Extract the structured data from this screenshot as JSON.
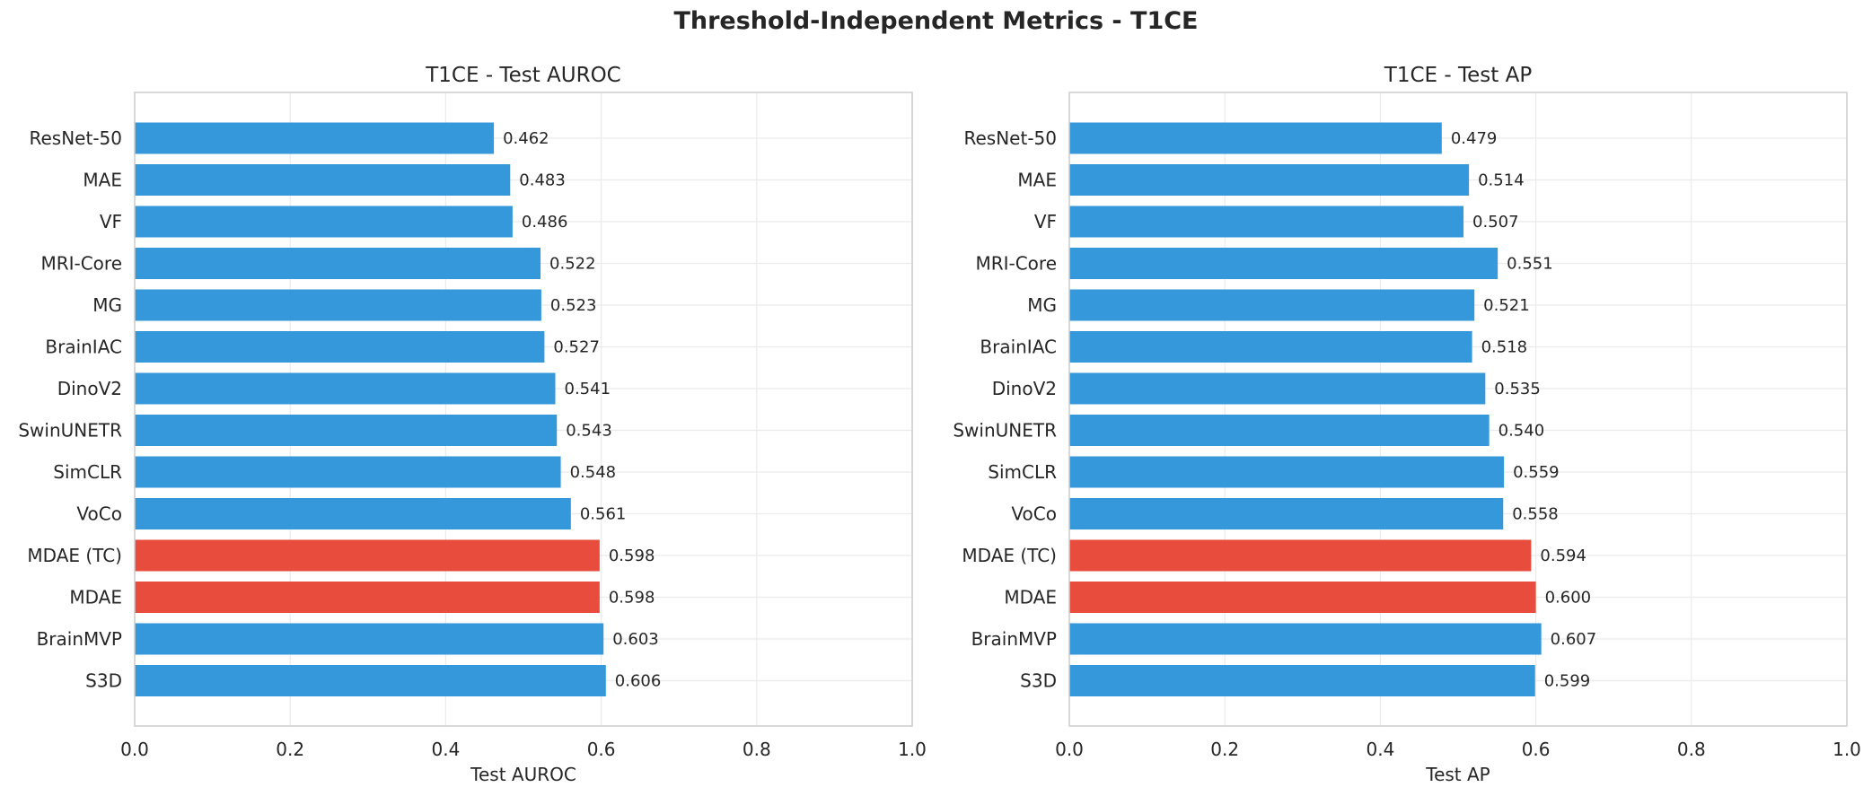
{
  "suptitle": "Threshold-Independent Metrics - T1CE",
  "colors": {
    "default": "#3498db",
    "highlight": "#e74c3c",
    "grid": "#ebebeb",
    "frame": "#cccccc"
  },
  "chart_data": [
    {
      "type": "bar",
      "orientation": "horizontal",
      "title": "T1CE - Test AUROC",
      "xlabel": "Test AUROC",
      "ylabel": "",
      "xlim": [
        0.0,
        1.0
      ],
      "xticks": [
        "0.0",
        "0.2",
        "0.4",
        "0.6",
        "0.8",
        "1.0"
      ],
      "grid": true,
      "categories": [
        "ResNet-50",
        "MAE",
        "VF",
        "MRI-Core",
        "MG",
        "BrainIAC",
        "DinoV2",
        "SwinUNETR",
        "SimCLR",
        "VoCo",
        "MDAE (TC)",
        "MDAE",
        "BrainMVP",
        "S3D"
      ],
      "values": [
        0.462,
        0.483,
        0.486,
        0.522,
        0.523,
        0.527,
        0.541,
        0.543,
        0.548,
        0.561,
        0.598,
        0.598,
        0.603,
        0.606
      ],
      "labels": [
        "0.462",
        "0.483",
        "0.486",
        "0.522",
        "0.523",
        "0.527",
        "0.541",
        "0.543",
        "0.548",
        "0.561",
        "0.598",
        "0.598",
        "0.603",
        "0.606"
      ],
      "highlight": [
        "MDAE (TC)",
        "MDAE"
      ]
    },
    {
      "type": "bar",
      "orientation": "horizontal",
      "title": "T1CE - Test AP",
      "xlabel": "Test AP",
      "ylabel": "",
      "xlim": [
        0.0,
        1.0
      ],
      "xticks": [
        "0.0",
        "0.2",
        "0.4",
        "0.6",
        "0.8",
        "1.0"
      ],
      "grid": true,
      "categories": [
        "ResNet-50",
        "MAE",
        "VF",
        "MRI-Core",
        "MG",
        "BrainIAC",
        "DinoV2",
        "SwinUNETR",
        "SimCLR",
        "VoCo",
        "MDAE (TC)",
        "MDAE",
        "BrainMVP",
        "S3D"
      ],
      "values": [
        0.479,
        0.514,
        0.507,
        0.551,
        0.521,
        0.518,
        0.535,
        0.54,
        0.559,
        0.558,
        0.594,
        0.6,
        0.607,
        0.599
      ],
      "labels": [
        "0.479",
        "0.514",
        "0.507",
        "0.551",
        "0.521",
        "0.518",
        "0.535",
        "0.540",
        "0.559",
        "0.558",
        "0.594",
        "0.600",
        "0.607",
        "0.599"
      ],
      "highlight": [
        "MDAE (TC)",
        "MDAE"
      ]
    }
  ]
}
